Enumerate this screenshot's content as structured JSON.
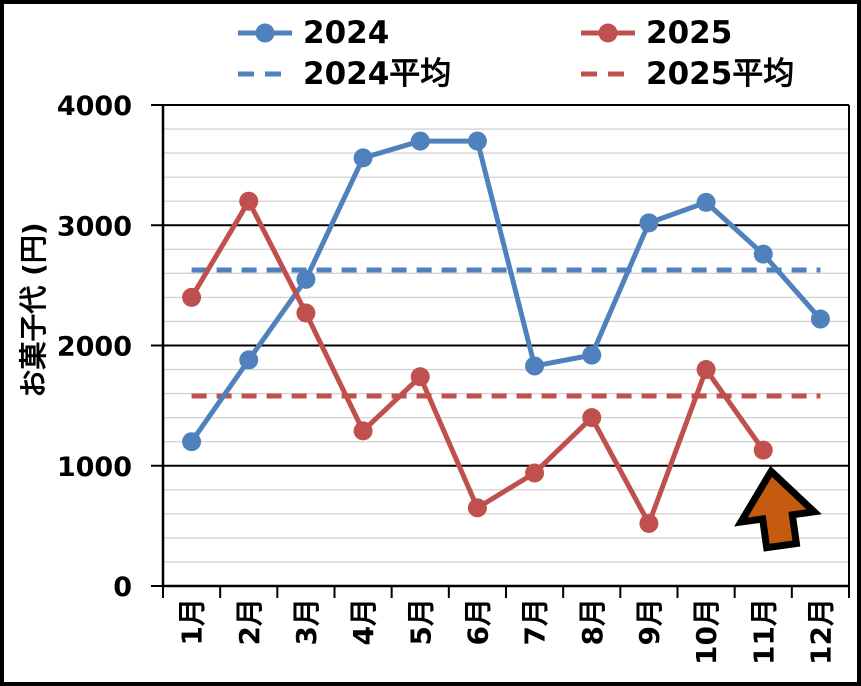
{
  "chart_data": {
    "type": "line",
    "title": "",
    "xlabel": "",
    "ylabel": "お菓子代 (円)",
    "categories": [
      "1月",
      "2月",
      "3月",
      "4月",
      "5月",
      "6月",
      "7月",
      "8月",
      "9月",
      "10月",
      "11月",
      "12月"
    ],
    "y_ticks": [
      0,
      1000,
      2000,
      3000,
      4000
    ],
    "ylim": [
      0,
      4000
    ],
    "minor_grid_step": 200,
    "grid": true,
    "legend_position": "top",
    "series": [
      {
        "name": "2024",
        "color": "#4F81BD",
        "style": "solid-markers",
        "values": [
          1200,
          1880,
          2550,
          3560,
          3700,
          3700,
          1830,
          1920,
          3020,
          3190,
          2760,
          2220
        ]
      },
      {
        "name": "2025",
        "color": "#C0504D",
        "style": "solid-markers",
        "values": [
          2400,
          3200,
          2270,
          1290,
          1740,
          650,
          940,
          1400,
          520,
          1800,
          1130,
          null
        ]
      },
      {
        "name": "2024平均",
        "color": "#4F81BD",
        "style": "dashed",
        "value": 2628
      },
      {
        "name": "2025平均",
        "color": "#C0504D",
        "style": "dashed",
        "value": 1580
      }
    ],
    "annotations": [
      {
        "type": "up-arrow",
        "color": "#C55A11",
        "outline": "#000000",
        "near_category": "11月",
        "meaning": "highlight 2025 November value"
      }
    ],
    "colors": {
      "axis": "#000000",
      "major_grid": "#000000",
      "minor_grid": "#D4D4D4",
      "text": "#000000"
    }
  }
}
